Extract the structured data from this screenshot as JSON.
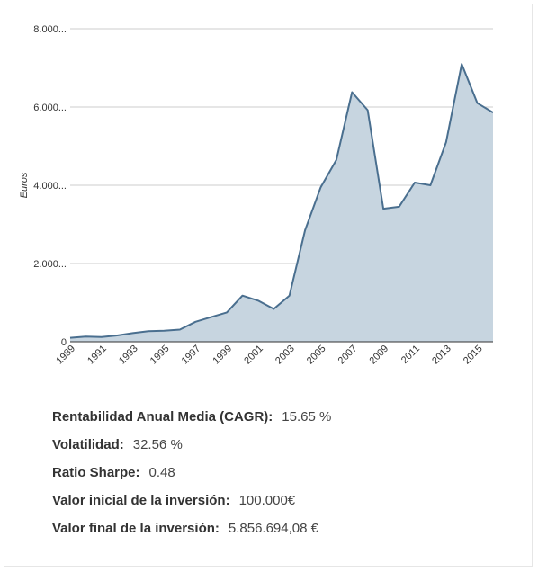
{
  "chart_data": {
    "type": "area",
    "ylabel": "Euros",
    "x_ticks": [
      "1989",
      "1991",
      "1993",
      "1995",
      "1997",
      "1999",
      "2001",
      "2003",
      "2005",
      "2007",
      "2009",
      "2011",
      "2013",
      "2015"
    ],
    "y_ticks": [
      {
        "value": 0,
        "label": "0"
      },
      {
        "value": 2000,
        "label": "2.000..."
      },
      {
        "value": 4000,
        "label": "4.000..."
      },
      {
        "value": 6000,
        "label": "6.000..."
      },
      {
        "value": 8000,
        "label": "8.000..."
      }
    ],
    "ylim": [
      0,
      8000
    ],
    "xlim": [
      1989,
      2016
    ],
    "grid": true,
    "series": [
      {
        "x": [
          1989,
          1990,
          1991,
          1992,
          1993,
          1994,
          1995,
          1996,
          1997,
          1998,
          1999,
          2000,
          2001,
          2002,
          2003,
          2004,
          2005,
          2006,
          2007,
          2008,
          2009,
          2010,
          2011,
          2012,
          2013,
          2014,
          2015,
          2016
        ],
        "values": [
          100,
          130,
          120,
          160,
          220,
          270,
          280,
          310,
          510,
          630,
          750,
          1180,
          1050,
          840,
          1180,
          2850,
          3950,
          4650,
          6380,
          5920,
          3400,
          3450,
          4070,
          4000,
          5100,
          7100,
          6100,
          5860
        ]
      }
    ],
    "colors": {
      "line": "#4a6f8f",
      "fill": "#c7d5e0",
      "grid": "#cccccc"
    }
  },
  "stats": [
    {
      "label": "Rentabilidad Anual Media (CAGR):",
      "value": "15.65 %"
    },
    {
      "label": "Volatilidad:",
      "value": "32.56 %"
    },
    {
      "label": "Ratio Sharpe:",
      "value": "0.48"
    },
    {
      "label": "Valor inicial de la inversión:",
      "value": "100.000€"
    },
    {
      "label": "Valor final de la inversión:",
      "value": "5.856.694,08 €"
    }
  ]
}
